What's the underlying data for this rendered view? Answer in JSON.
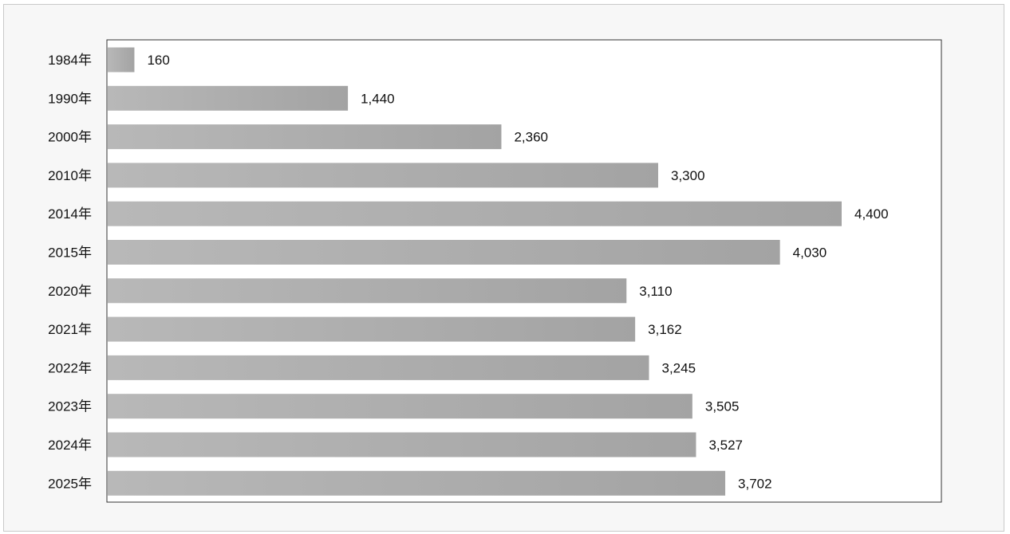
{
  "chart_data": {
    "type": "bar",
    "orientation": "horizontal",
    "categories": [
      "1984年",
      "1990年",
      "2000年",
      "2010年",
      "2014年",
      "2015年",
      "2020年",
      "2021年",
      "2022年",
      "2023年",
      "2024年",
      "2025年"
    ],
    "values": [
      160,
      1440,
      2360,
      3300,
      4400,
      4030,
      3110,
      3162,
      3245,
      3505,
      3527,
      3702
    ],
    "value_labels": [
      "160",
      "1,440",
      "2,360",
      "3,300",
      "4,400",
      "4,030",
      "3,110",
      "3,162",
      "3,245",
      "3,505",
      "3,527",
      "3,702"
    ],
    "title": "",
    "xlabel": "",
    "ylabel": "",
    "xlim": [
      0,
      5000
    ],
    "grid": false,
    "legend": "none",
    "colors": {
      "bar_light": "#b8b8b8",
      "bar_dark": "#a3a3a3",
      "background": "#f7f7f7",
      "plot_background": "#ffffff",
      "text": "#111111"
    }
  }
}
